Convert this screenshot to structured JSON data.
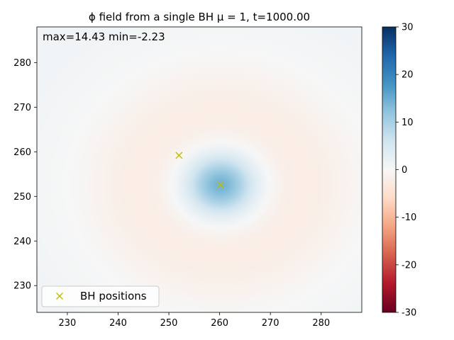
{
  "chart_data": {
    "type": "heatmap",
    "title": "ϕ field from a single BH μ = 1, t=1000.00",
    "annotation": "max=14.43 min=-2.23",
    "field_max": 14.43,
    "field_min": -2.23,
    "xlabel": "",
    "ylabel": "",
    "xlim": [
      224,
      288
    ],
    "ylim": [
      224,
      288
    ],
    "x_ticks": [
      230,
      240,
      250,
      260,
      270,
      280
    ],
    "y_ticks": [
      230,
      240,
      250,
      260,
      270,
      280
    ],
    "colormap": "RdBu",
    "colorbar": {
      "range": [
        -30,
        30
      ],
      "ticks": [
        -30,
        -20,
        -10,
        0,
        10,
        20,
        30
      ]
    },
    "field_center": [
      260.2,
      252.6
    ],
    "bh_positions": [
      {
        "x": 252,
        "y": 259.2
      },
      {
        "x": 260.2,
        "y": 252.6
      }
    ],
    "marker_color": "#bfbf00",
    "legend": {
      "label": "BH positions",
      "placement": "lower-left"
    },
    "grid": false
  }
}
